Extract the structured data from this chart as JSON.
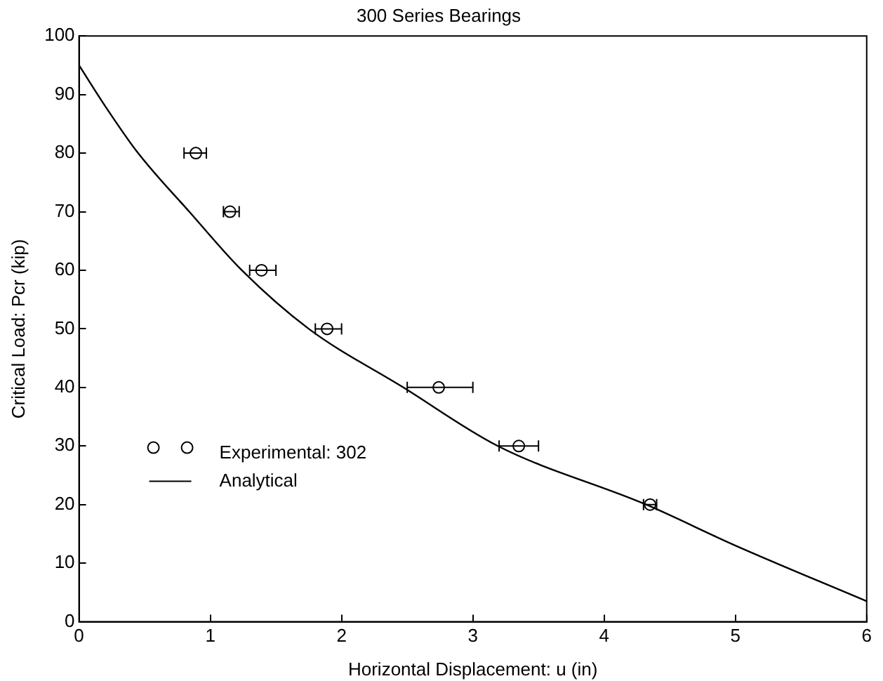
{
  "chart_data": {
    "type": "scatter",
    "title": "300 Series Bearings",
    "xlabel": "Horizontal Displacement: u (in)",
    "ylabel": "Critical Load: Pcr (kip)",
    "xlim": [
      0,
      6
    ],
    "xticks": [
      0,
      1,
      2,
      3,
      4,
      5,
      6
    ],
    "ylim": [
      0,
      100
    ],
    "yticks": [
      0,
      10,
      20,
      30,
      40,
      50,
      60,
      70,
      80,
      90,
      100
    ],
    "grid": false,
    "legend": "bottom left",
    "series": [
      {
        "name": "Experimental: 302",
        "type": "scatter",
        "color": "#000000",
        "marker": "circle",
        "x": [
          0.89,
          1.15,
          1.39,
          1.89,
          2.74,
          3.35,
          4.35
        ],
        "values": [
          80,
          70,
          60,
          50,
          40,
          30,
          20
        ],
        "xerrors": [
          [
            0.8,
            0.97
          ],
          [
            1.1,
            1.22
          ],
          [
            1.3,
            1.5
          ],
          [
            1.8,
            2.0
          ],
          [
            2.5,
            3.0
          ],
          [
            3.2,
            3.5
          ],
          [
            4.3,
            4.4
          ]
        ]
      },
      {
        "name": "Analytical",
        "type": "line",
        "color": "#000000",
        "marker": "none",
        "line_style": "solid",
        "x": [
          0,
          0.2,
          0.45,
          0.84,
          1.24,
          1.75,
          2.47,
          3.19,
          4.32,
          5,
          6
        ],
        "values": [
          95,
          88,
          80,
          70,
          60,
          50,
          40,
          30,
          20,
          13,
          3.5
        ]
      }
    ]
  }
}
